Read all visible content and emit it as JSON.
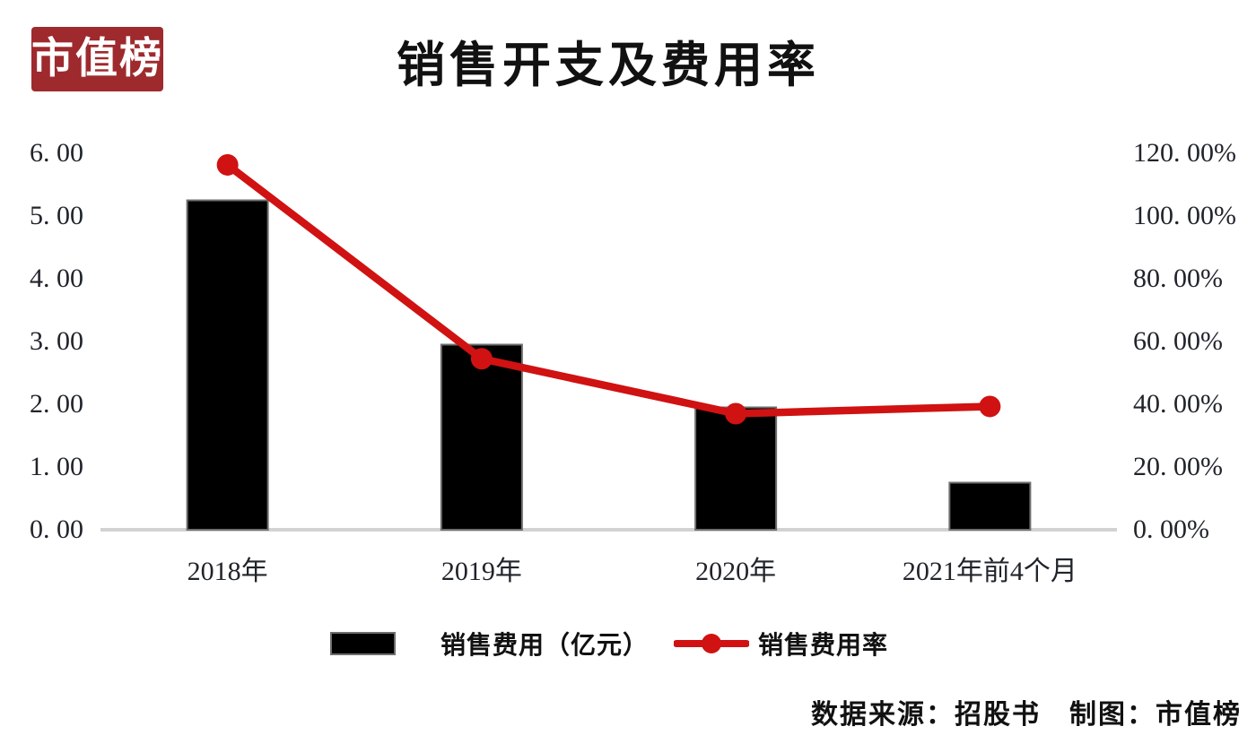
{
  "logo": {
    "text": "市值榜",
    "bg_color": "#9e2a2e",
    "text_color": "#ffffff"
  },
  "title": "销售开支及费用率",
  "footer": {
    "text": "数据来源：招股书　制图：市值榜"
  },
  "legend": [
    {
      "type": "bar",
      "label": "销售费用（亿元）",
      "color": "#000000"
    },
    {
      "type": "line",
      "label": "销售费用率",
      "color": "#d01212"
    }
  ],
  "colors": {
    "bar_fill": "#000000",
    "bar_border": "#6e6e6e",
    "line_red": "#d01212",
    "axis_line": "#d2d2d2",
    "text": "#20242b"
  },
  "chart_data": {
    "type": "combo",
    "title": "销售开支及费用率",
    "categories": [
      "2018年",
      "2019年",
      "2020年",
      "2021年前4个月"
    ],
    "series": [
      {
        "name": "销售费用（亿元）",
        "type": "bar",
        "axis": "left",
        "color": "#000000",
        "values": [
          5.25,
          2.95,
          1.95,
          0.75
        ]
      },
      {
        "name": "销售费用率",
        "type": "line",
        "axis": "right",
        "color": "#d01212",
        "values": [
          116.3,
          54.5,
          37.0,
          39.3
        ]
      }
    ],
    "left_axis": {
      "min": 0,
      "max": 6,
      "step": 1,
      "tick_labels": [
        "6. 00",
        "5. 00",
        "4. 00",
        "3. 00",
        "2. 00",
        "1. 00",
        "0. 00"
      ]
    },
    "right_axis": {
      "min": 0,
      "max": 120,
      "step": 20,
      "tick_labels": [
        "120. 00%",
        "100. 00%",
        "80. 00%",
        "60. 00%",
        "40. 00%",
        "20. 00%",
        "0. 00%"
      ]
    },
    "grid": false,
    "legend_position": "bottom",
    "source_note": "数据来源：招股书　制图：市值榜"
  }
}
